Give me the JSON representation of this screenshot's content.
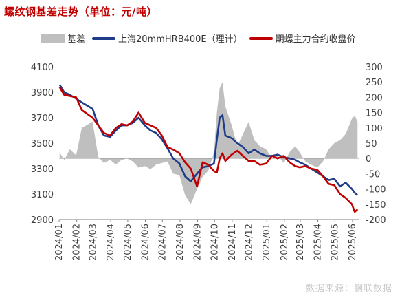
{
  "title": "螺纹钢基差走势（单位：元/吨）",
  "source": "数据来源：钢联数据",
  "colors": {
    "title": "#c00000",
    "basis": "#bfbfbf",
    "spot": "#1f3c88",
    "futures": "#c00000"
  },
  "chart_data": {
    "type": "line",
    "title": "螺纹钢基差走势（单位：元/吨）",
    "legend_position": "top",
    "grid": false,
    "x_ticks": [
      "2024/01",
      "2024/02",
      "2024/03",
      "2024/04",
      "2024/05",
      "2024/06",
      "2024/07",
      "2024/08",
      "2024/09",
      "2024/10",
      "2024/11",
      "2024/12",
      "2025/01",
      "2025/02",
      "2025/03",
      "2025/04",
      "2025/05",
      "2025/06"
    ],
    "x_range": [
      "2024/01",
      "2025/06"
    ],
    "y_left": {
      "ylim": [
        2900,
        4100
      ],
      "ticks": [
        2900,
        3100,
        3300,
        3500,
        3700,
        3900,
        4100
      ]
    },
    "y_right": {
      "ylim": [
        -200,
        300
      ],
      "ticks": [
        -200,
        -150,
        -100,
        -50,
        0,
        50,
        100,
        150,
        200,
        250,
        300
      ]
    },
    "series": [
      {
        "name": "基差",
        "type": "area",
        "axis": "right",
        "color": "#bfbfbf",
        "dates": [
          "2024/01/02",
          "2024/01/10",
          "2024/01/20",
          "2024/01/31",
          "2024/02/10",
          "2024/02/29",
          "2024/03/10",
          "2024/03/20",
          "2024/03/31",
          "2024/04/10",
          "2024/04/20",
          "2024/04/30",
          "2024/05/10",
          "2024/05/20",
          "2024/05/31",
          "2024/06/10",
          "2024/06/20",
          "2024/06/30",
          "2024/07/10",
          "2024/07/20",
          "2024/07/31",
          "2024/08/10",
          "2024/08/20",
          "2024/08/31",
          "2024/09/10",
          "2024/09/20",
          "2024/09/30",
          "2024/10/05",
          "2024/10/10",
          "2024/10/15",
          "2024/10/20",
          "2024/10/31",
          "2024/11/10",
          "2024/11/20",
          "2024/11/30",
          "2024/12/10",
          "2024/12/20",
          "2024/12/31",
          "2025/01/10",
          "2025/01/20",
          "2025/01/31",
          "2025/02/10",
          "2025/02/20",
          "2025/02/28",
          "2025/03/10",
          "2025/03/20",
          "2025/03/31",
          "2025/04/10",
          "2025/04/20",
          "2025/04/30",
          "2025/05/10",
          "2025/05/20",
          "2025/05/31",
          "2025/06/05",
          "2025/06/10"
        ],
        "values": [
          20,
          -5,
          30,
          10,
          100,
          120,
          5,
          -15,
          -5,
          -20,
          -5,
          0,
          -10,
          -30,
          -25,
          -35,
          -20,
          -15,
          -10,
          -50,
          -55,
          -120,
          -150,
          -100,
          -60,
          -40,
          20,
          150,
          230,
          250,
          170,
          110,
          40,
          80,
          120,
          60,
          40,
          30,
          0,
          10,
          -15,
          20,
          40,
          20,
          -10,
          -20,
          -30,
          -10,
          30,
          50,
          60,
          80,
          130,
          140,
          120
        ]
      },
      {
        "name": "上海20mmHRB400E（理计）",
        "type": "line",
        "axis": "left",
        "color": "#1f3c88",
        "dates": [
          "2024/01/02",
          "2024/01/10",
          "2024/01/20",
          "2024/01/31",
          "2024/02/10",
          "2024/02/29",
          "2024/03/10",
          "2024/03/20",
          "2024/03/31",
          "2024/04/10",
          "2024/04/20",
          "2024/04/30",
          "2024/05/10",
          "2024/05/20",
          "2024/05/31",
          "2024/06/10",
          "2024/06/20",
          "2024/06/30",
          "2024/07/10",
          "2024/07/20",
          "2024/07/31",
          "2024/08/10",
          "2024/08/20",
          "2024/08/31",
          "2024/09/10",
          "2024/09/20",
          "2024/09/30",
          "2024/10/05",
          "2024/10/10",
          "2024/10/15",
          "2024/10/20",
          "2024/10/31",
          "2024/11/10",
          "2024/11/20",
          "2024/11/30",
          "2024/12/10",
          "2024/12/20",
          "2024/12/31",
          "2025/01/10",
          "2025/01/20",
          "2025/01/31",
          "2025/02/10",
          "2025/02/20",
          "2025/02/28",
          "2025/03/10",
          "2025/03/20",
          "2025/03/31",
          "2025/04/10",
          "2025/04/20",
          "2025/04/30",
          "2025/05/10",
          "2025/05/20",
          "2025/05/31",
          "2025/06/05",
          "2025/06/10"
        ],
        "values": [
          3960,
          3900,
          3880,
          3850,
          3820,
          3770,
          3640,
          3560,
          3550,
          3600,
          3640,
          3640,
          3660,
          3700,
          3640,
          3600,
          3580,
          3530,
          3460,
          3380,
          3340,
          3240,
          3200,
          3260,
          3310,
          3320,
          3340,
          3530,
          3700,
          3720,
          3560,
          3540,
          3500,
          3470,
          3420,
          3450,
          3420,
          3400,
          3400,
          3410,
          3390,
          3380,
          3370,
          3350,
          3330,
          3300,
          3270,
          3240,
          3210,
          3220,
          3160,
          3190,
          3140,
          3110,
          3090
        ]
      },
      {
        "name": "期螺主力合约收盘价",
        "type": "line",
        "axis": "left",
        "color": "#c00000",
        "dates": [
          "2024/01/02",
          "2024/01/10",
          "2024/01/20",
          "2024/01/31",
          "2024/02/10",
          "2024/02/29",
          "2024/03/10",
          "2024/03/20",
          "2024/03/31",
          "2024/04/10",
          "2024/04/20",
          "2024/04/30",
          "2024/05/10",
          "2024/05/20",
          "2024/05/31",
          "2024/06/10",
          "2024/06/20",
          "2024/06/30",
          "2024/07/10",
          "2024/07/20",
          "2024/07/31",
          "2024/08/10",
          "2024/08/20",
          "2024/08/31",
          "2024/09/10",
          "2024/09/20",
          "2024/09/30",
          "2024/10/05",
          "2024/10/10",
          "2024/10/15",
          "2024/10/20",
          "2024/10/31",
          "2024/11/10",
          "2024/11/20",
          "2024/11/30",
          "2024/12/10",
          "2024/12/20",
          "2024/12/31",
          "2025/01/10",
          "2025/01/20",
          "2025/01/31",
          "2025/02/10",
          "2025/02/20",
          "2025/02/28",
          "2025/03/10",
          "2025/03/20",
          "2025/03/31",
          "2025/04/10",
          "2025/04/20",
          "2025/04/30",
          "2025/05/10",
          "2025/05/20",
          "2025/05/31",
          "2025/06/05",
          "2025/06/10"
        ],
        "values": [
          3940,
          3880,
          3870,
          3860,
          3760,
          3700,
          3640,
          3580,
          3560,
          3620,
          3650,
          3640,
          3670,
          3740,
          3660,
          3640,
          3620,
          3560,
          3470,
          3450,
          3420,
          3350,
          3300,
          3160,
          3350,
          3330,
          3280,
          3270,
          3380,
          3420,
          3360,
          3410,
          3440,
          3400,
          3360,
          3360,
          3330,
          3340,
          3400,
          3380,
          3400,
          3350,
          3320,
          3310,
          3320,
          3300,
          3290,
          3240,
          3180,
          3170,
          3100,
          3070,
          3020,
          2960,
          2980
        ]
      }
    ]
  }
}
